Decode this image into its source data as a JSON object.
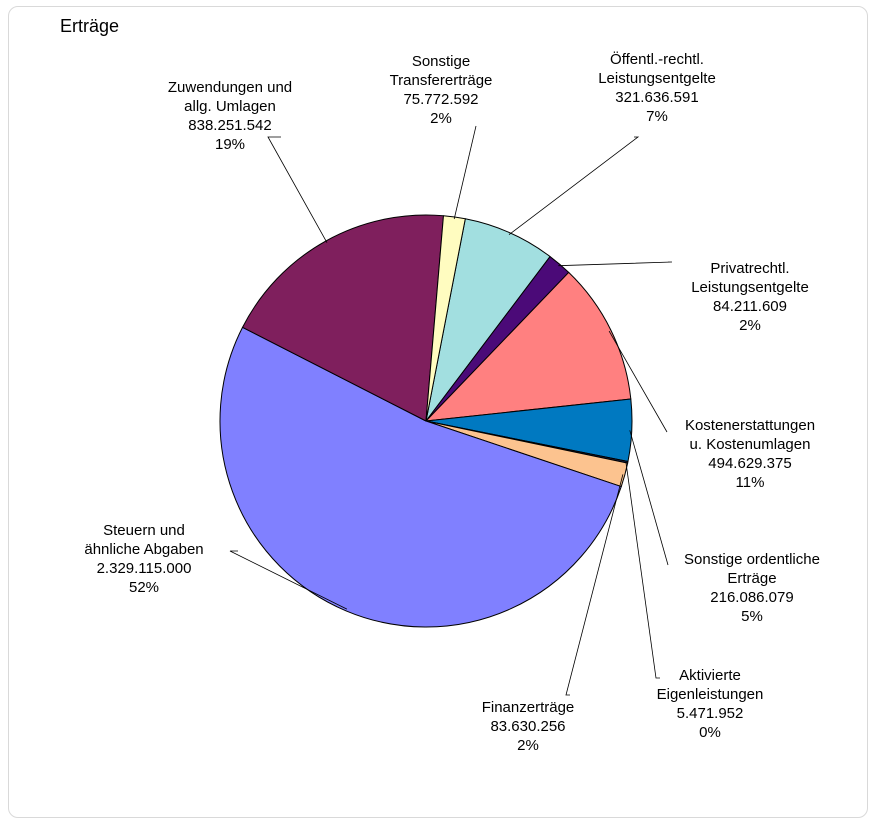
{
  "chart_data": {
    "type": "pie",
    "title": "Erträge",
    "slices": [
      {
        "label_lines": [
          "Öffentl.-rechtl.",
          "Leistungsentgelte"
        ],
        "value": 321636591,
        "value_text": "321.636.591",
        "percent_text": "7%",
        "color": "#a2dfe0"
      },
      {
        "label_lines": [
          "Privatrechtl.",
          "Leistungsentgelte"
        ],
        "value": 84211609,
        "value_text": "84.211.609",
        "percent_text": "2%",
        "color": "#4b0a78"
      },
      {
        "label_lines": [
          "Kostenerstattungen",
          "u. Kostenumlagen"
        ],
        "value": 494629375,
        "value_text": "494.629.375",
        "percent_text": "11%",
        "color": "#ff8080"
      },
      {
        "label_lines": [
          "Sonstige ordentliche",
          "Erträge"
        ],
        "value": 216086079,
        "value_text": "216.086.079",
        "percent_text": "5%",
        "color": "#0079c1"
      },
      {
        "label_lines": [
          "Aktivierte",
          "Eigenleistungen"
        ],
        "value": 5471952,
        "value_text": "5.471.952",
        "percent_text": "0%",
        "color": "#1e2a55"
      },
      {
        "label_lines": [
          "Finanzerträge"
        ],
        "value": 83630256,
        "value_text": "83.630.256",
        "percent_text": "2%",
        "color": "#fcc38f"
      },
      {
        "label_lines": [
          "Steuern und",
          "ähnliche Abgaben"
        ],
        "value": 2329115000,
        "value_text": "2.329.115.000",
        "percent_text": "52%",
        "color": "#8080ff"
      },
      {
        "label_lines": [
          "Zuwendungen und",
          "allg. Umlagen"
        ],
        "value": 838251542,
        "value_text": "838.251.542",
        "percent_text": "19%",
        "color": "#7f1f5d"
      },
      {
        "label_lines": [
          "Sonstige",
          "Transfererträge"
        ],
        "value": 75772592,
        "value_text": "75.772.592",
        "percent_text": "2%",
        "color": "#fffcc0"
      }
    ]
  }
}
